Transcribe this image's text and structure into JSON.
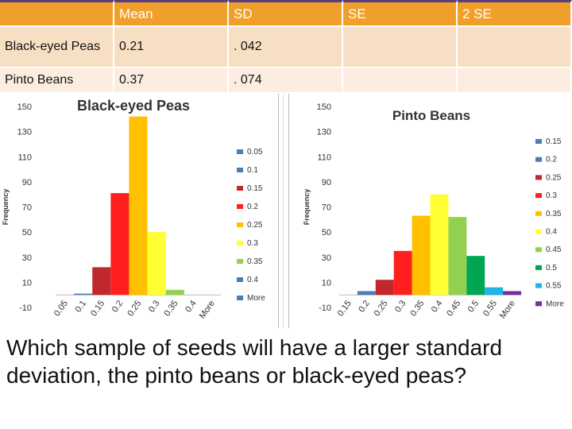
{
  "table": {
    "headers": [
      "",
      "Mean",
      "SD",
      "SE",
      "2 SE"
    ],
    "rows": [
      [
        "Black-eyed Peas",
        "0.21",
        ". 042",
        "",
        ""
      ],
      [
        "Pinto Beans",
        "0.37",
        ". 074",
        "",
        ""
      ]
    ]
  },
  "chart_data": [
    {
      "type": "bar",
      "title": "Black-eyed Peas",
      "ylabel": "Frequency",
      "xlabel": "",
      "yticks": [
        150,
        130,
        110,
        90,
        70,
        50,
        30,
        10,
        -10
      ],
      "ylim": [
        -10,
        150
      ],
      "categories": [
        "0.05",
        "0.1",
        "0.15",
        "0.2",
        "0.25",
        "0.3",
        "0.35",
        "0.4",
        "More"
      ],
      "values": [
        0,
        1,
        22,
        81,
        142,
        50,
        4,
        0,
        0
      ],
      "colors": [
        "#4a7eb5",
        "#4a7eb5",
        "#c0282d",
        "#ff1f1f",
        "#ffc000",
        "#ffff33",
        "#92d050",
        "#4a7eb5",
        "#4a7eb5"
      ],
      "legend": [
        "0.05",
        "0.1",
        "0.15",
        "0.2",
        "0.25",
        "0.3",
        "0.35",
        "0.4",
        "More"
      ],
      "legend_placement": "right"
    },
    {
      "type": "bar",
      "title": "Pinto Beans",
      "ylabel": "Frequency",
      "xlabel": "",
      "yticks": [
        150,
        130,
        110,
        90,
        70,
        50,
        30,
        10,
        -10
      ],
      "ylim": [
        -10,
        150
      ],
      "categories": [
        "0.15",
        "0.2",
        "0.25",
        "0.3",
        "0.35",
        "0.4",
        "0.45",
        "0.5",
        "0.55",
        "More"
      ],
      "values": [
        0,
        3,
        12,
        35,
        63,
        80,
        62,
        31,
        6,
        3
      ],
      "colors": [
        "#4a7eb5",
        "#4a7eb5",
        "#c0282d",
        "#ff1f1f",
        "#ffc000",
        "#ffff33",
        "#92d050",
        "#00a651",
        "#1fb4e6",
        "#7030a0"
      ],
      "legend": [
        "0.15",
        "0.2",
        "0.25",
        "0.3",
        "0.35",
        "0.4",
        "0.45",
        "0.5",
        "0.55",
        "More"
      ],
      "legend_placement": "right"
    }
  ],
  "question": "Which sample of seeds will have a larger standard deviation, the pinto beans or black-eyed peas?"
}
